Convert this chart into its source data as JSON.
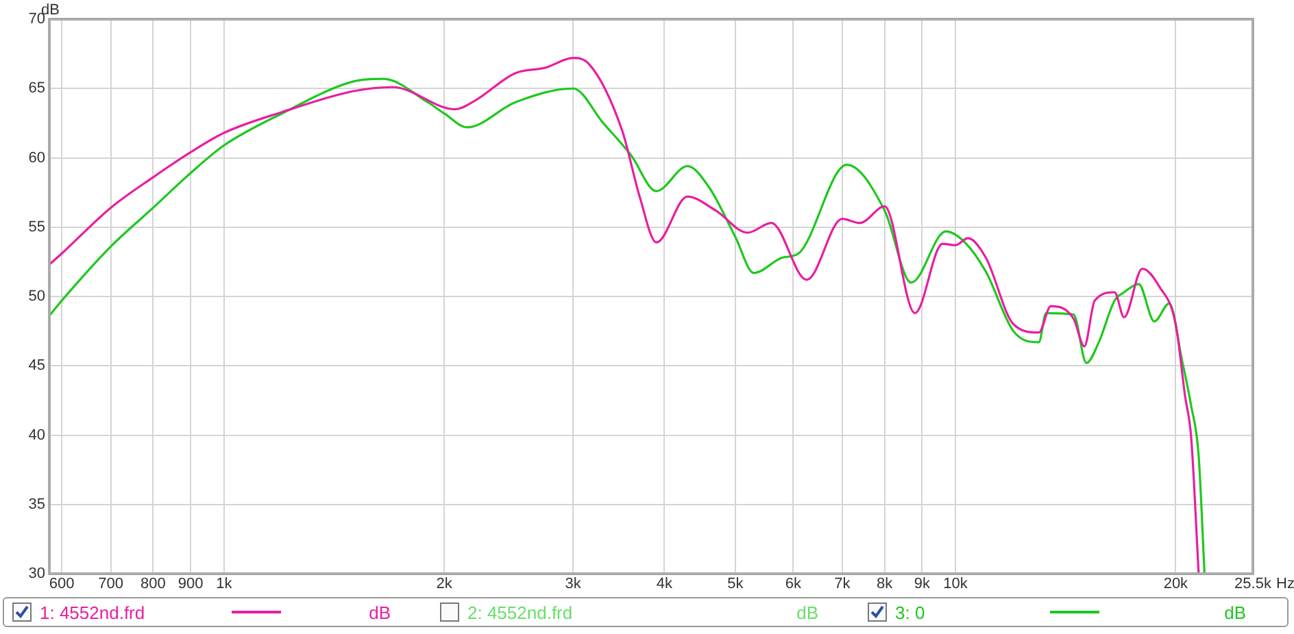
{
  "chart_data": {
    "type": "line",
    "xlabel": "Hz",
    "ylabel": "dB",
    "log": "x",
    "grid": true,
    "legend": "bottom",
    "marker": "none",
    "line_style": "solid",
    "xlim": [
      577,
      25500
    ],
    "ylim": [
      30,
      70
    ],
    "xticks": [
      {
        "value": 600,
        "label": "600"
      },
      {
        "value": 700,
        "label": "700"
      },
      {
        "value": 800,
        "label": "800"
      },
      {
        "value": 900,
        "label": "900"
      },
      {
        "value": 1000,
        "label": "1k"
      },
      {
        "value": 2000,
        "label": "2k"
      },
      {
        "value": 3000,
        "label": "3k"
      },
      {
        "value": 4000,
        "label": "4k"
      },
      {
        "value": 5000,
        "label": "5k"
      },
      {
        "value": 6000,
        "label": "6k"
      },
      {
        "value": 7000,
        "label": "7k"
      },
      {
        "value": 8000,
        "label": "8k"
      },
      {
        "value": 9000,
        "label": "9k"
      },
      {
        "value": 10000,
        "label": "10k"
      },
      {
        "value": 20000,
        "label": "20k"
      },
      {
        "value": 25500,
        "label": "25.5k"
      }
    ],
    "yticks": [
      30,
      35,
      40,
      45,
      50,
      55,
      60,
      65,
      70
    ],
    "annotations": [
      "2: 4552nd.frd"
    ],
    "series": [
      {
        "name": "1: 4552nd.frd",
        "color": "#e81ea0",
        "x": [
          577,
          600,
          700,
          800,
          900,
          1000,
          1200,
          1500,
          1700,
          2070,
          2200,
          2500,
          2750,
          3000,
          3150,
          3500,
          3700,
          3900,
          4300,
          4700,
          5200,
          5600,
          6260,
          7000,
          7400,
          8000,
          8800,
          9600,
          10000,
          10400,
          11000,
          12000,
          13000,
          13500,
          14500,
          15000,
          15500,
          16500,
          17000,
          18000,
          19000,
          20000,
          20600,
          21000,
          21500
        ],
        "values": [
          52.3,
          53.1,
          56.4,
          58.6,
          60.4,
          61.8,
          63.3,
          64.8,
          65.1,
          63.5,
          64.1,
          66.1,
          66.5,
          67.2,
          66.8,
          62.0,
          57.2,
          53.9,
          57.2,
          56.2,
          54.6,
          55.3,
          51.2,
          55.6,
          55.3,
          56.5,
          48.8,
          53.8,
          53.7,
          54.2,
          52.8,
          48.0,
          47.4,
          49.3,
          48.4,
          46.4,
          49.7,
          50.3,
          48.5,
          52.0,
          50.7,
          48.0,
          42.8,
          39.8,
          30
        ]
      },
      {
        "name": "3: 0",
        "color": "#1ec81e",
        "x": [
          577,
          600,
          700,
          800,
          900,
          1000,
          1200,
          1500,
          1650,
          1900,
          2000,
          2150,
          2500,
          3000,
          3300,
          3600,
          3900,
          4300,
          4600,
          5000,
          5300,
          5800,
          6100,
          7100,
          8000,
          8700,
          9700,
          10300,
          11000,
          12000,
          13000,
          13300,
          14500,
          15100,
          15700,
          16500,
          17000,
          17800,
          18700,
          19600,
          20400,
          21000,
          21500,
          21900
        ],
        "values": [
          48.6,
          49.7,
          53.6,
          56.4,
          58.9,
          60.9,
          63.2,
          65.5,
          65.7,
          64.0,
          63.2,
          62.2,
          64.0,
          65.0,
          62.5,
          60.2,
          57.6,
          59.4,
          57.9,
          54.3,
          51.7,
          52.8,
          53.1,
          59.5,
          56.2,
          51.0,
          54.7,
          53.9,
          51.8,
          47.5,
          46.7,
          48.8,
          48.7,
          45.2,
          46.7,
          49.7,
          50.3,
          50.9,
          48.2,
          49.5,
          45.4,
          42.1,
          38.5,
          30
        ]
      }
    ]
  }
}
